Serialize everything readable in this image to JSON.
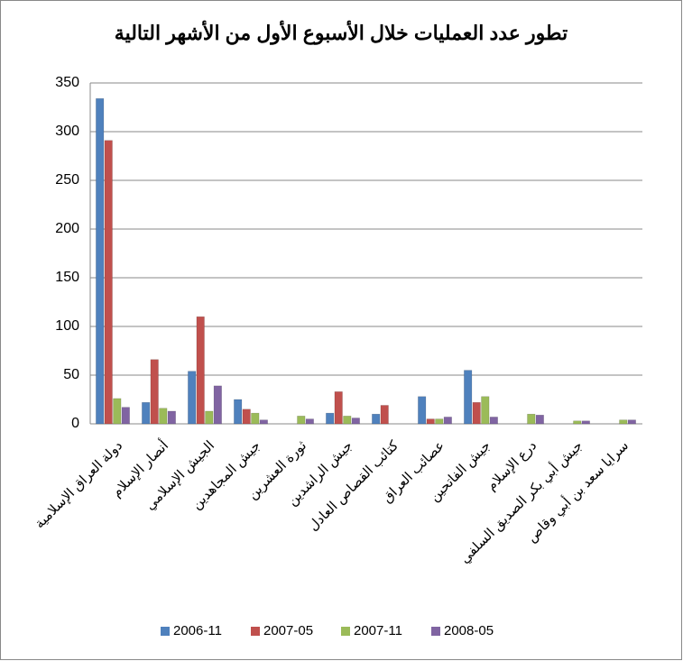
{
  "chart_data": {
    "type": "bar",
    "title": "تطور عدد العمليات خلال الأسبوع الأول من الأشهر التالية",
    "categories": [
      "دولة العراق الإسلامية",
      "أنصار الإسلام",
      "الجيش الإسلامي",
      "جيش المجاهدين",
      "ثورة العشرين",
      "جيش الراشدين",
      "كتائب القصاص العادل",
      "عصائب العراق",
      "جيش الفاتحين",
      "درع الإسلام",
      "جيش أبي بكر الصديق السلفي",
      "سرايا سعد بن أبي وقاص"
    ],
    "series": [
      {
        "name": "2006-11",
        "color": "#4f81bd",
        "values": [
          334,
          22,
          54,
          25,
          0,
          11,
          10,
          28,
          55,
          0,
          0,
          0
        ]
      },
      {
        "name": "2007-05",
        "color": "#c0504d",
        "values": [
          291,
          66,
          110,
          15,
          0,
          33,
          19,
          5,
          22,
          0,
          0,
          0
        ]
      },
      {
        "name": "2007-11",
        "color": "#9bbb59",
        "values": [
          26,
          16,
          13,
          11,
          8,
          8,
          0,
          5,
          28,
          10,
          3,
          4
        ]
      },
      {
        "name": "2008-05",
        "color": "#8064a2",
        "values": [
          17,
          13,
          39,
          4,
          5,
          6,
          0,
          7,
          7,
          9,
          3,
          4
        ]
      }
    ],
    "ylim": [
      0,
      350
    ],
    "yticks": [
      0,
      50,
      100,
      150,
      200,
      250,
      300,
      350
    ],
    "grid": true,
    "legend": "bottom"
  }
}
